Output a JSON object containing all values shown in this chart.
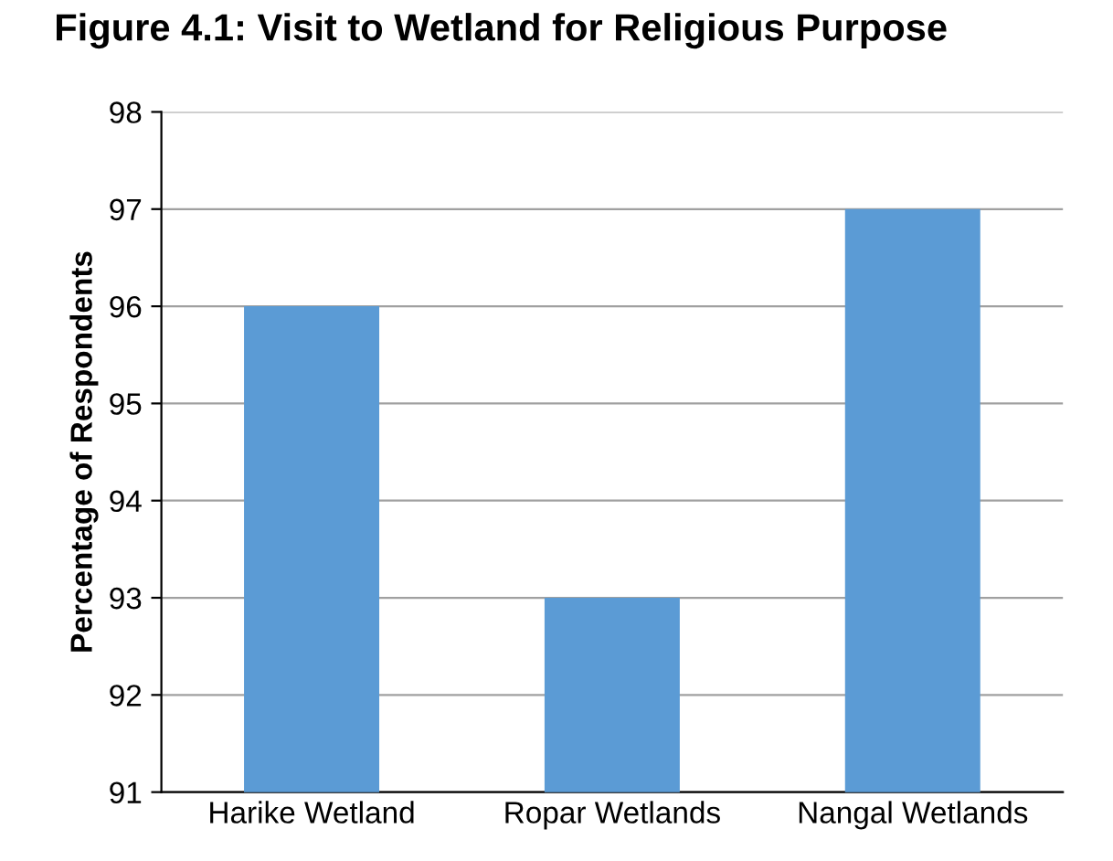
{
  "chart_data": {
    "type": "bar",
    "title": "Figure 4.1: Visit to Wetland for Religious Purpose",
    "ylabel": "Percentage of Respondents",
    "categories": [
      "Harike Wetland",
      "Ropar Wetlands",
      "Nangal Wetlands"
    ],
    "values": [
      96,
      93,
      97
    ],
    "color": "#5b9bd5",
    "ylim": [
      91,
      98
    ],
    "yticks": [
      91,
      92,
      93,
      94,
      95,
      96,
      97,
      98
    ],
    "grid": "y"
  }
}
